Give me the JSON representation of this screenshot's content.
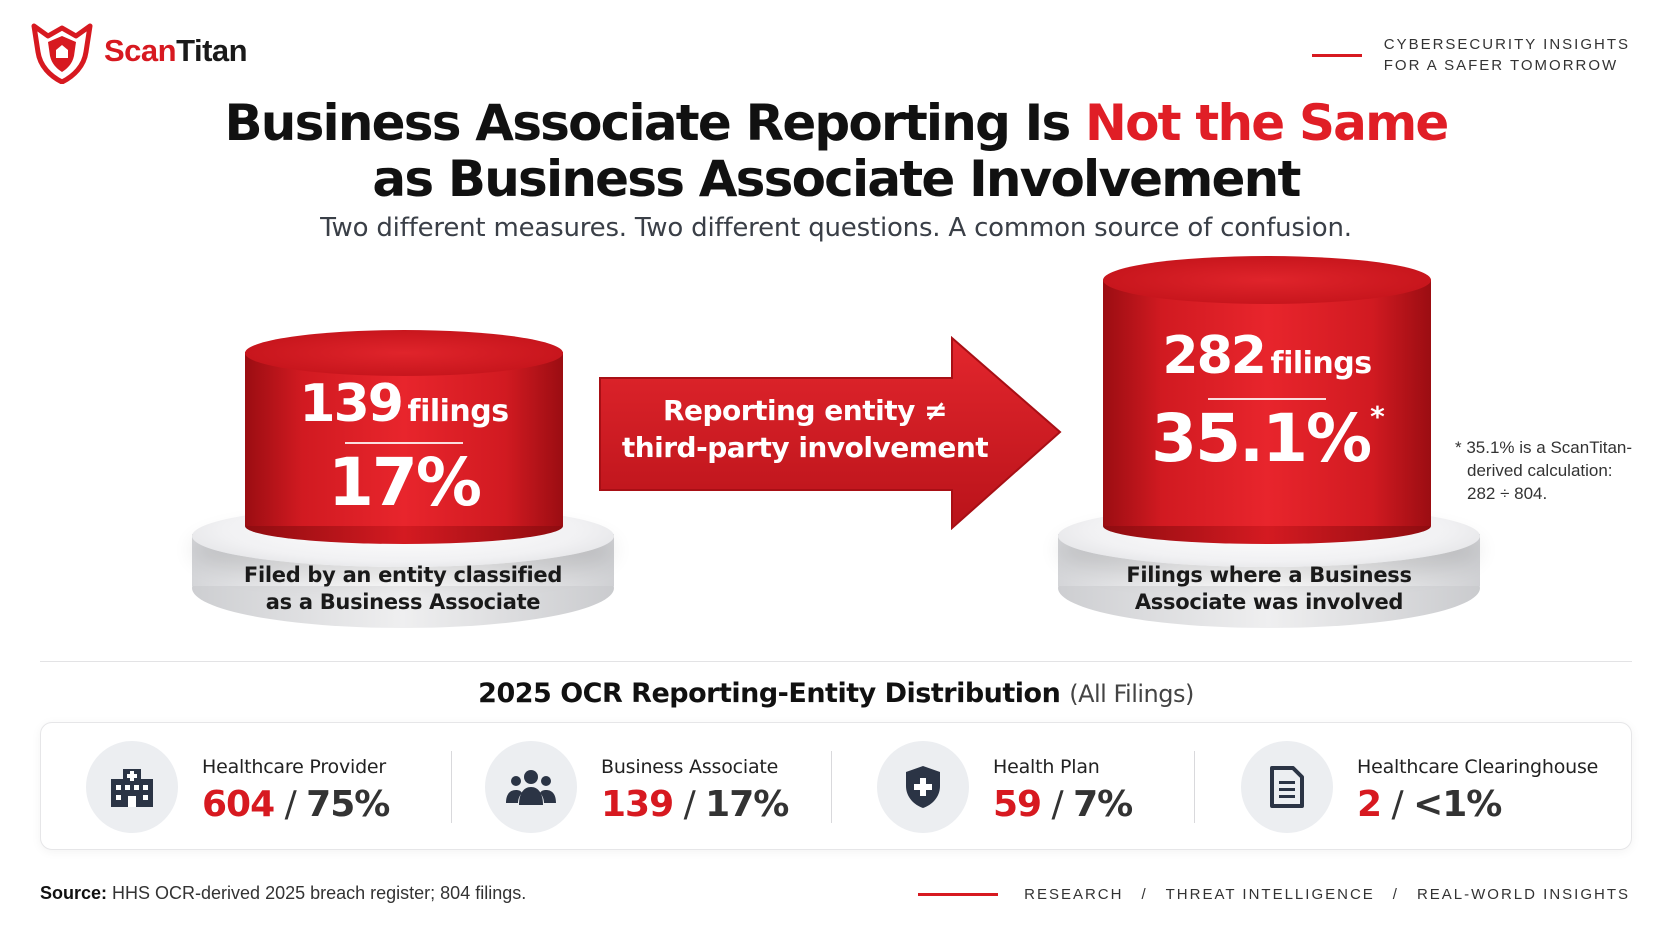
{
  "brand": {
    "name_part1": "Scan",
    "name_part2": "Titan",
    "tagline_line1": "CYBERSECURITY INSIGHTS",
    "tagline_line2": "FOR A SAFER TOMORROW",
    "accent_color": "#d71920"
  },
  "title": {
    "part1": "Business Associate Reporting Is ",
    "highlight": "Not the Same",
    "line2": "as Business Associate Involvement"
  },
  "subtitle": "Two different measures. Two different questions. A common source of confusion.",
  "left_podium": {
    "count": "139",
    "unit": "filings",
    "percent": "17%",
    "label_line1": "Filed by an entity classified",
    "label_line2": "as a Business Associate"
  },
  "arrow": {
    "line1": "Reporting entity ≠",
    "line2": "third-party involvement"
  },
  "right_podium": {
    "count": "282",
    "unit": "filings",
    "percent": "35.1%",
    "asterisk": "*",
    "label_line1": "Filings where a Business",
    "label_line2": "Associate was involved"
  },
  "footnote": {
    "line1": "* 35.1% is a ScanTitan-",
    "line2": "derived calculation:",
    "line3": "282 ÷ 804."
  },
  "distribution": {
    "title": "2025 OCR Reporting-Entity Distribution",
    "title_suffix": "(All Filings)",
    "items": [
      {
        "label": "Healthcare Provider",
        "count": "604",
        "sep": " / ",
        "percent": "75%",
        "icon": "hospital-icon"
      },
      {
        "label": "Business Associate",
        "count": "139",
        "sep": " / ",
        "percent": "17%",
        "icon": "people-icon"
      },
      {
        "label": "Health Plan",
        "count": "59",
        "sep": " / ",
        "percent": "7%",
        "icon": "shield-plus-icon"
      },
      {
        "label": "Healthcare Clearinghouse",
        "count": "2",
        "sep": " / ",
        "percent": "<1%",
        "icon": "document-icon"
      }
    ]
  },
  "source": {
    "label": "Source:",
    "text": " HHS OCR-derived 2025 breach register; 804 filings."
  },
  "footer_nav": [
    "RESEARCH",
    "/",
    "THREAT INTELLIGENCE",
    "/",
    "REAL-WORLD INSIGHTS"
  ]
}
